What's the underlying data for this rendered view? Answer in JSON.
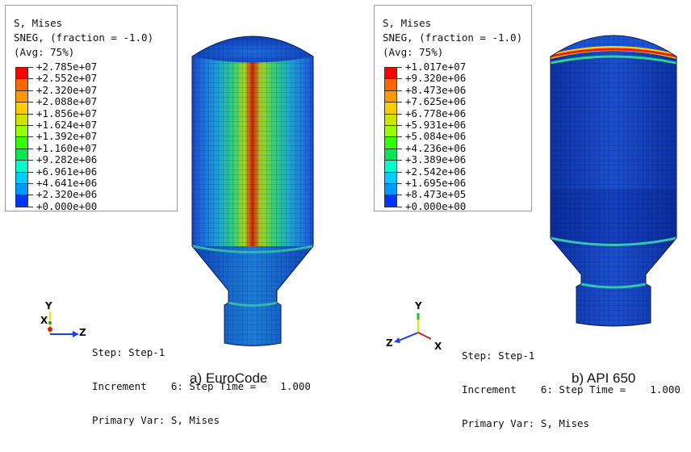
{
  "panels": [
    {
      "legend": {
        "title": "S, Mises",
        "subtitle": "SNEG, (fraction = -1.0)",
        "avg": "(Avg: 75%)",
        "values": [
          "+2.785e+07",
          "+2.552e+07",
          "+2.320e+07",
          "+2.088e+07",
          "+1.856e+07",
          "+1.624e+07",
          "+1.392e+07",
          "+1.160e+07",
          "+9.282e+06",
          "+6.961e+06",
          "+4.641e+06",
          "+2.320e+06",
          "+0.000e+00"
        ]
      },
      "triad": {
        "top_label": "Y",
        "side_label": "X",
        "right_label": "Z"
      },
      "step": {
        "line1": "Step: Step-1",
        "line2": "Increment    6: Step Time =    1.000",
        "line3": "Primary Var: S, Mises"
      },
      "caption": "a) EuroCode"
    },
    {
      "legend": {
        "title": "S, Mises",
        "subtitle": "SNEG, (fraction = -1.0)",
        "avg": "(Avg: 75%)",
        "values": [
          "+1.017e+07",
          "+9.320e+06",
          "+8.473e+06",
          "+7.625e+06",
          "+6.778e+06",
          "+5.931e+06",
          "+5.084e+06",
          "+4.236e+06",
          "+3.389e+06",
          "+2.542e+06",
          "+1.695e+06",
          "+8.473e+05",
          "+0.000e+00"
        ]
      },
      "triad": {
        "top_label": "Y",
        "left_label": "Z",
        "right_label": "X"
      },
      "step": {
        "line1": "Step: Step-1",
        "line2": "Increment    6: Step Time =    1.000",
        "line3": "Primary Var: S, Mises"
      },
      "caption": "b) API 650"
    }
  ],
  "colors": {
    "contour": [
      "#ff0000",
      "#ff6600",
      "#ff9900",
      "#ffcc00",
      "#cce600",
      "#99ff00",
      "#33ff00",
      "#00e655",
      "#00ffcc",
      "#00ccff",
      "#0099ff",
      "#0033ff"
    ]
  }
}
